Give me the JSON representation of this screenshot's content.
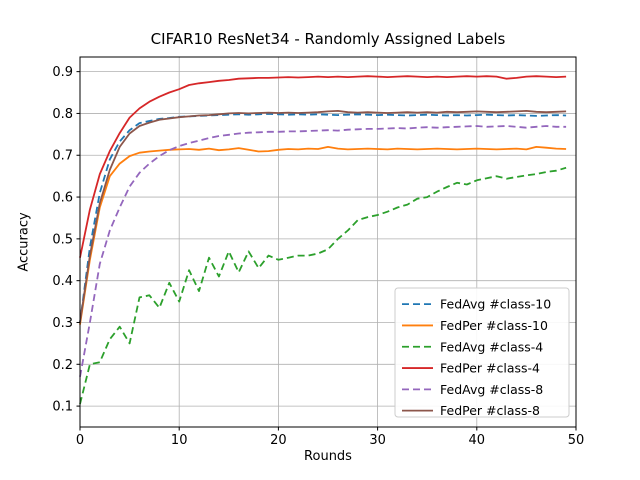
{
  "chart_data": {
    "type": "line",
    "title": "CIFAR10 ResNet34 - Randomly Assigned Labels",
    "xlabel": "Rounds",
    "ylabel": "Accuracy",
    "xlim": [
      0,
      50
    ],
    "ylim": [
      0.05,
      0.935
    ],
    "xticks": [
      0,
      10,
      20,
      30,
      40,
      50
    ],
    "yticks": [
      0.1,
      0.2,
      0.3,
      0.4,
      0.5,
      0.6,
      0.7,
      0.8,
      0.9
    ],
    "grid": true,
    "legend_position": "lower right",
    "colors": {
      "grid": "#b0b0b0",
      "spine": "#000000",
      "legend_border": "#cccccc",
      "legend_bg": "#ffffff",
      "text": "#000000"
    },
    "x": [
      0,
      1,
      2,
      3,
      4,
      5,
      6,
      7,
      8,
      9,
      10,
      11,
      12,
      13,
      14,
      15,
      16,
      17,
      18,
      19,
      20,
      21,
      22,
      23,
      24,
      25,
      26,
      27,
      28,
      29,
      30,
      31,
      32,
      33,
      34,
      35,
      36,
      37,
      38,
      39,
      40,
      41,
      42,
      43,
      44,
      45,
      46,
      47,
      48,
      49
    ],
    "series": [
      {
        "name": "FedAvg #class-10",
        "color": "#1f77b4",
        "line_style": "dashed",
        "values": [
          0.3,
          0.48,
          0.61,
          0.69,
          0.733,
          0.76,
          0.777,
          0.782,
          0.787,
          0.789,
          0.792,
          0.793,
          0.794,
          0.795,
          0.796,
          0.797,
          0.798,
          0.797,
          0.798,
          0.799,
          0.798,
          0.797,
          0.798,
          0.797,
          0.798,
          0.797,
          0.796,
          0.797,
          0.798,
          0.797,
          0.796,
          0.797,
          0.796,
          0.795,
          0.796,
          0.797,
          0.796,
          0.795,
          0.796,
          0.795,
          0.796,
          0.797,
          0.796,
          0.795,
          0.796,
          0.795,
          0.794,
          0.795,
          0.796,
          0.795
        ]
      },
      {
        "name": "FedPer #class-10",
        "color": "#ff7f0e",
        "line_style": "solid",
        "values": [
          0.295,
          0.45,
          0.575,
          0.65,
          0.68,
          0.698,
          0.706,
          0.709,
          0.711,
          0.713,
          0.714,
          0.715,
          0.713,
          0.716,
          0.712,
          0.714,
          0.717,
          0.713,
          0.709,
          0.71,
          0.713,
          0.715,
          0.714,
          0.716,
          0.715,
          0.72,
          0.716,
          0.714,
          0.715,
          0.716,
          0.715,
          0.714,
          0.716,
          0.715,
          0.714,
          0.715,
          0.716,
          0.715,
          0.714,
          0.715,
          0.716,
          0.715,
          0.714,
          0.715,
          0.716,
          0.714,
          0.72,
          0.718,
          0.716,
          0.715
        ]
      },
      {
        "name": "FedAvg #class-4",
        "color": "#2ca02c",
        "line_style": "dashed",
        "values": [
          0.105,
          0.2,
          0.205,
          0.26,
          0.29,
          0.25,
          0.36,
          0.365,
          0.335,
          0.395,
          0.35,
          0.425,
          0.375,
          0.455,
          0.41,
          0.47,
          0.42,
          0.47,
          0.43,
          0.46,
          0.45,
          0.455,
          0.46,
          0.46,
          0.465,
          0.475,
          0.5,
          0.52,
          0.545,
          0.552,
          0.557,
          0.565,
          0.575,
          0.582,
          0.596,
          0.6,
          0.613,
          0.624,
          0.634,
          0.63,
          0.64,
          0.645,
          0.65,
          0.644,
          0.648,
          0.652,
          0.655,
          0.66,
          0.663,
          0.67
        ]
      },
      {
        "name": "FedPer #class-4",
        "color": "#d62728",
        "line_style": "solid",
        "values": [
          0.455,
          0.57,
          0.655,
          0.71,
          0.753,
          0.79,
          0.812,
          0.828,
          0.84,
          0.85,
          0.858,
          0.868,
          0.872,
          0.875,
          0.878,
          0.88,
          0.883,
          0.884,
          0.885,
          0.885,
          0.886,
          0.887,
          0.886,
          0.887,
          0.888,
          0.887,
          0.888,
          0.887,
          0.888,
          0.889,
          0.888,
          0.887,
          0.888,
          0.889,
          0.888,
          0.887,
          0.888,
          0.887,
          0.888,
          0.889,
          0.888,
          0.889,
          0.888,
          0.883,
          0.885,
          0.888,
          0.889,
          0.888,
          0.887,
          0.888
        ]
      },
      {
        "name": "FedAvg #class-8",
        "color": "#9467bd",
        "line_style": "dashed",
        "values": [
          0.17,
          0.3,
          0.44,
          0.52,
          0.575,
          0.625,
          0.658,
          0.68,
          0.698,
          0.712,
          0.722,
          0.729,
          0.735,
          0.741,
          0.746,
          0.749,
          0.752,
          0.754,
          0.755,
          0.756,
          0.756,
          0.757,
          0.757,
          0.758,
          0.759,
          0.76,
          0.759,
          0.761,
          0.762,
          0.763,
          0.763,
          0.764,
          0.765,
          0.764,
          0.766,
          0.767,
          0.766,
          0.767,
          0.768,
          0.769,
          0.77,
          0.768,
          0.769,
          0.77,
          0.768,
          0.766,
          0.768,
          0.77,
          0.768,
          0.768
        ]
      },
      {
        "name": "FedPer #class-8",
        "color": "#8c564b",
        "line_style": "solid",
        "values": [
          0.3,
          0.46,
          0.585,
          0.665,
          0.72,
          0.752,
          0.77,
          0.778,
          0.785,
          0.788,
          0.791,
          0.793,
          0.795,
          0.796,
          0.798,
          0.8,
          0.801,
          0.8,
          0.801,
          0.802,
          0.801,
          0.802,
          0.801,
          0.802,
          0.803,
          0.805,
          0.806,
          0.803,
          0.802,
          0.803,
          0.802,
          0.801,
          0.802,
          0.803,
          0.802,
          0.803,
          0.802,
          0.804,
          0.803,
          0.804,
          0.805,
          0.804,
          0.803,
          0.804,
          0.805,
          0.806,
          0.804,
          0.803,
          0.804,
          0.805
        ]
      }
    ]
  }
}
